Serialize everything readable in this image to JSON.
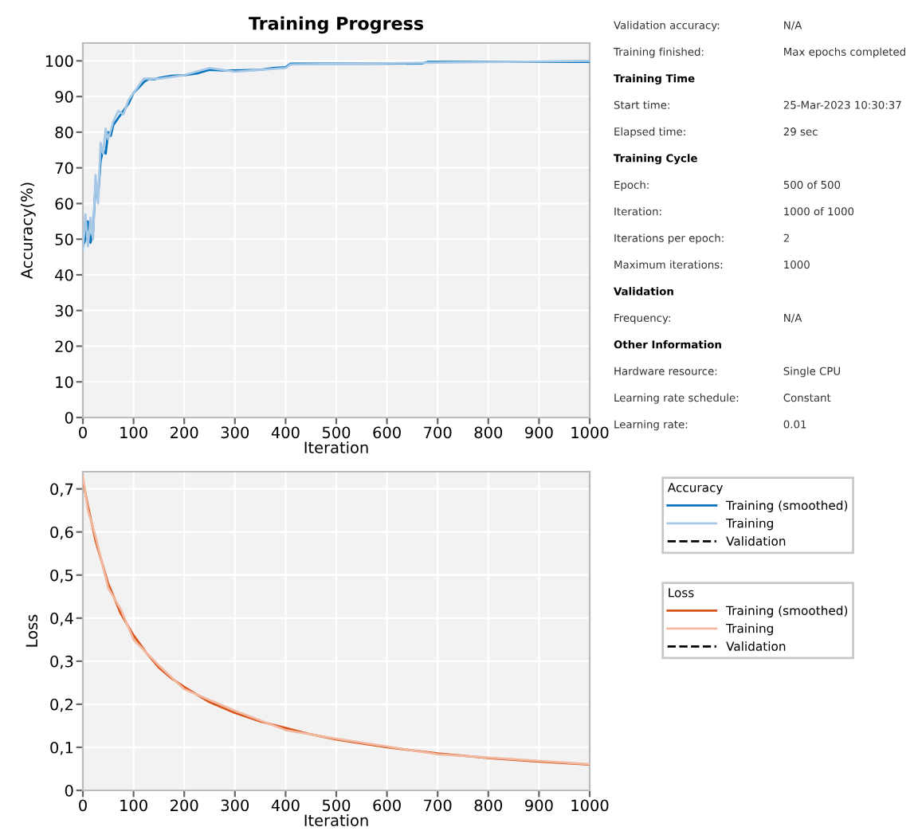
{
  "chart_data": [
    {
      "type": "line",
      "title": "Training Progress",
      "xlabel": "Iteration",
      "ylabel": "Accuracy(%)",
      "legend_title": "Accuracy",
      "legend": "right",
      "grid": true,
      "xlim": [
        0,
        1000
      ],
      "xticks": [
        0,
        100,
        200,
        300,
        400,
        500,
        600,
        700,
        800,
        900,
        1000
      ],
      "ylim": [
        0,
        105
      ],
      "yticks": [
        0,
        10,
        20,
        30,
        40,
        50,
        60,
        70,
        80,
        90,
        100
      ],
      "series": [
        {
          "name": "Training (smoothed)",
          "color": "#0072bd",
          "marker": "none",
          "line_style": "solid",
          "x": [
            0,
            5,
            10,
            15,
            20,
            25,
            30,
            35,
            40,
            45,
            50,
            55,
            60,
            70,
            80,
            90,
            100,
            110,
            120,
            130,
            140,
            150,
            175,
            200,
            225,
            250,
            275,
            300,
            350,
            375,
            400,
            410,
            500,
            600,
            670,
            680,
            800,
            1000
          ],
          "values": [
            48,
            50,
            55,
            49,
            52,
            65,
            62,
            72,
            75,
            74,
            80,
            79,
            82,
            84,
            86,
            88,
            91,
            92.5,
            94,
            95,
            94.8,
            95.2,
            95.8,
            96,
            96.5,
            97.5,
            97.3,
            97.3,
            97.5,
            98,
            98.2,
            99.2,
            99.2,
            99.2,
            99.3,
            99.7,
            99.7,
            99.7
          ]
        },
        {
          "name": "Training",
          "color": "#a6c8e6",
          "marker": "none",
          "line_style": "solid",
          "x": [
            0,
            5,
            10,
            15,
            20,
            25,
            30,
            35,
            40,
            45,
            50,
            60,
            70,
            80,
            90,
            100,
            120,
            150,
            200,
            250,
            300,
            400,
            410,
            1000
          ],
          "values": [
            47,
            57,
            48,
            56,
            50,
            68,
            60,
            77,
            74,
            81,
            78,
            83,
            86,
            85,
            89,
            91,
            95,
            95,
            96,
            98,
            97,
            98,
            99,
            100
          ]
        },
        {
          "name": "Validation",
          "color": "#000000",
          "marker": "none",
          "line_style": "dashed"
        }
      ]
    },
    {
      "type": "line",
      "xlabel": "Iteration",
      "ylabel": "Loss",
      "legend_title": "Loss",
      "legend": "right",
      "grid": true,
      "xlim": [
        0,
        1000
      ],
      "xticks": [
        0,
        100,
        200,
        300,
        400,
        500,
        600,
        700,
        800,
        900,
        1000
      ],
      "ylim": [
        0,
        0.74
      ],
      "yticks": [
        {
          "value": 0,
          "label": "0"
        },
        {
          "value": 0.1,
          "label": "0,1"
        },
        {
          "value": 0.2,
          "label": "0,2"
        },
        {
          "value": 0.3,
          "label": "0,3"
        },
        {
          "value": 0.4,
          "label": "0,4"
        },
        {
          "value": 0.5,
          "label": "0,5"
        },
        {
          "value": 0.6,
          "label": "0,6"
        },
        {
          "value": 0.7,
          "label": "0,7"
        }
      ],
      "series": [
        {
          "name": "Training (smoothed)",
          "color": "#d95319",
          "marker": "none",
          "line_style": "solid",
          "x": [
            0,
            10,
            25,
            50,
            75,
            100,
            125,
            150,
            175,
            200,
            250,
            300,
            350,
            400,
            450,
            500,
            600,
            700,
            800,
            900,
            1000
          ],
          "values": [
            0.72,
            0.66,
            0.58,
            0.48,
            0.41,
            0.36,
            0.32,
            0.285,
            0.26,
            0.24,
            0.205,
            0.18,
            0.16,
            0.145,
            0.13,
            0.118,
            0.1,
            0.086,
            0.075,
            0.067,
            0.06
          ]
        },
        {
          "name": "Training",
          "color": "#f2b9a0",
          "marker": "none",
          "line_style": "solid",
          "x": [
            0,
            10,
            25,
            50,
            75,
            100,
            150,
            200,
            300,
            400,
            500,
            700,
            1000
          ],
          "values": [
            0.73,
            0.65,
            0.59,
            0.47,
            0.42,
            0.35,
            0.29,
            0.235,
            0.185,
            0.14,
            0.12,
            0.084,
            0.061
          ]
        },
        {
          "name": "Validation",
          "color": "#000000",
          "marker": "none",
          "line_style": "dashed"
        }
      ]
    },
    {
      "type": "other",
      "annotations": [
        "Validation accuracy:",
        "N/A",
        "Training finished:",
        "Max epochs completed"
      ]
    },
    {
      "type": "other",
      "title": "Training Time",
      "annotations": [
        "Start time:",
        "25-Mar-2023 10:30:37",
        "Elapsed time:",
        "29 sec"
      ]
    },
    {
      "type": "other",
      "title": "Training Cycle",
      "annotations": [
        "Epoch:",
        "500 of 500",
        "Iteration:",
        "1000 of 1000",
        "Iterations per epoch:",
        "2",
        "Maximum iterations:",
        "1000"
      ]
    },
    {
      "type": "other",
      "title": "Validation",
      "annotations": [
        "Frequency:",
        "N/A"
      ]
    },
    {
      "type": "other",
      "title": "Other Information",
      "annotations": [
        "Hardware resource:",
        "Single CPU",
        "Learning rate schedule:",
        "Constant",
        "Learning rate:",
        "0.01"
      ]
    }
  ]
}
